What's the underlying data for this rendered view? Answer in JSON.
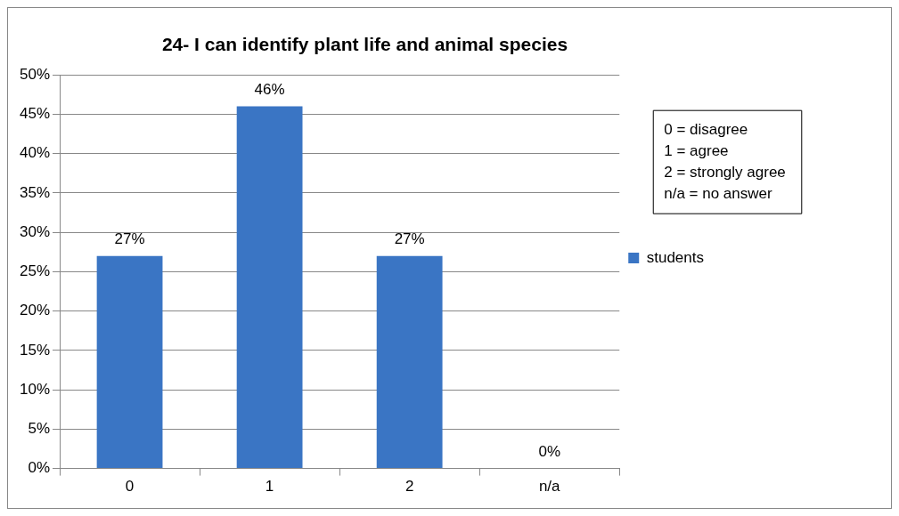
{
  "chart_data": {
    "type": "bar",
    "title": "24- I can identify plant life and animal species",
    "categories": [
      "0",
      "1",
      "2",
      "n/a"
    ],
    "series": [
      {
        "name": "students",
        "color": "#3a75c4",
        "values": [
          27,
          46,
          27,
          0
        ]
      }
    ],
    "value_labels": [
      "27%",
      "46%",
      "27%",
      "0%"
    ],
    "ylim": [
      0,
      50
    ],
    "yticks": [
      {
        "value": 0,
        "label": "0%"
      },
      {
        "value": 5,
        "label": "5%"
      },
      {
        "value": 10,
        "label": "10%"
      },
      {
        "value": 15,
        "label": "15%"
      },
      {
        "value": 20,
        "label": "20%"
      },
      {
        "value": 25,
        "label": "25%"
      },
      {
        "value": 30,
        "label": "30%"
      },
      {
        "value": 35,
        "label": "35%"
      },
      {
        "value": 40,
        "label": "40%"
      },
      {
        "value": 45,
        "label": "45%"
      },
      {
        "value": 50,
        "label": "50%"
      }
    ],
    "grid": "y",
    "legend": "right",
    "annotations": [
      "0 = disagree",
      "1 = agree",
      "2 = strongly agree",
      "n/a = no answer"
    ]
  }
}
